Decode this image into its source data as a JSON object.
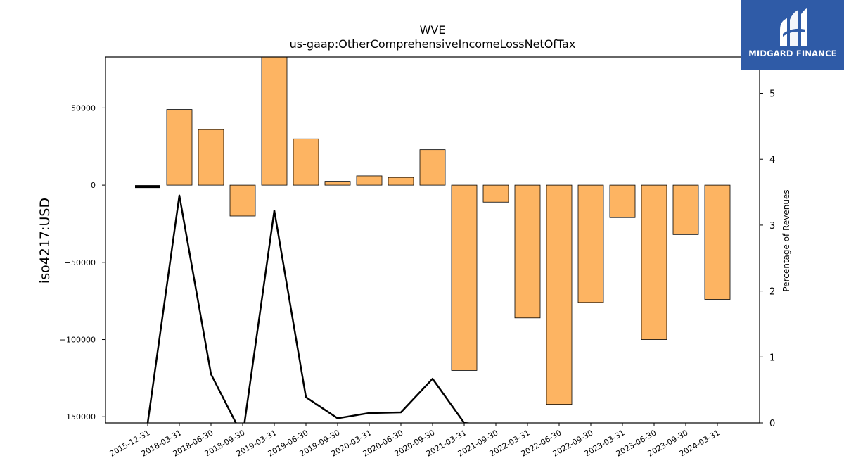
{
  "chart_data": {
    "type": "bar",
    "title": "WVE",
    "subtitle": "us-gaap:OtherComprehensiveIncomeLossNetOfTax",
    "ylabel": "iso4217:USD",
    "y2label": "Percentage of Revenues",
    "categories": [
      "2015-12-31",
      "2018-03-31",
      "2018-06-30",
      "2018-09-30",
      "2019-03-31",
      "2019-06-30",
      "2019-09-30",
      "2020-03-31",
      "2020-06-30",
      "2020-09-30",
      "2021-03-31",
      "2021-09-30",
      "2022-03-31",
      "2022-06-30",
      "2022-09-30",
      "2023-03-31",
      "2023-06-30",
      "2023-09-30",
      "2024-03-31"
    ],
    "values": [
      -1000,
      49000,
      36000,
      -20000,
      83000,
      30000,
      2500,
      6000,
      5000,
      23000,
      -120000,
      -11000,
      -86000,
      -142000,
      -76000,
      -21000,
      -100000,
      -32000,
      -74000
    ],
    "line_values": [
      0,
      3.45,
      0.74,
      -0.2,
      3.22,
      0.39,
      0.07,
      0.15,
      0.16,
      0.67,
      0.0,
      -0.05,
      -0.05,
      -0.05,
      -0.05,
      -0.05,
      -0.05,
      -0.05,
      -0.05
    ],
    "ylim": [
      -154000,
      83000
    ],
    "y2lim": [
      0,
      5.55
    ],
    "yticks": [
      50000,
      0,
      -50000,
      -100000,
      -150000
    ],
    "ytick_labels": [
      "50000",
      "0",
      "−50000",
      "−100000",
      "−150000"
    ],
    "y2ticks": [
      0,
      1,
      2,
      3,
      4,
      5
    ],
    "y2tick_labels": [
      "0",
      "1",
      "2",
      "3",
      "4",
      "5"
    ],
    "bar_color": "#fdb462",
    "line_color": "#000000",
    "grid": false
  },
  "logo": {
    "text": "MIDGARD FINANCE"
  }
}
